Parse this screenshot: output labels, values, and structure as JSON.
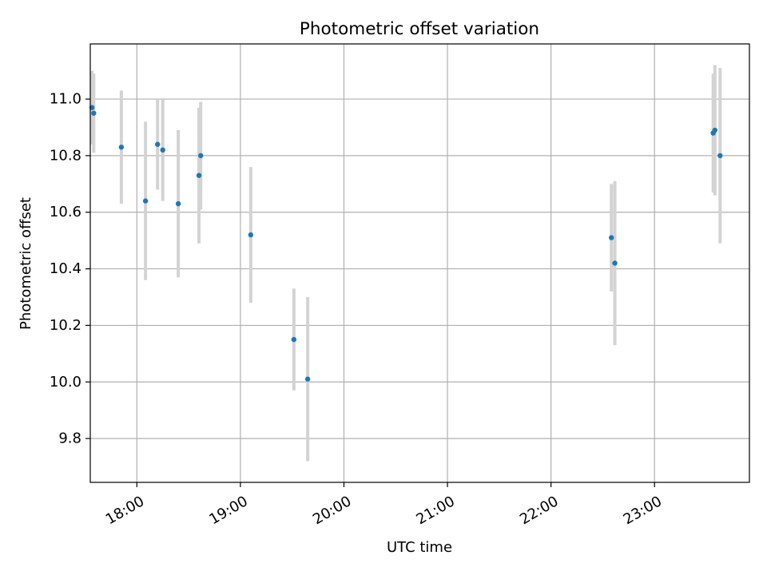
{
  "chart_data": {
    "type": "scatter",
    "title": "Photometric offset variation",
    "xlabel": "UTC time",
    "ylabel": "Photometric offset",
    "x_unit": "UTC time (HH:MM)",
    "xlim": [
      "17:33",
      "23:55"
    ],
    "ylim": [
      9.645,
      11.195
    ],
    "x_ticks": [
      "18:00",
      "19:00",
      "20:00",
      "21:00",
      "22:00",
      "23:00"
    ],
    "y_ticks": [
      "9.8",
      "10.0",
      "10.2",
      "10.4",
      "10.6",
      "10.8",
      "11.0"
    ],
    "grid": true,
    "legend": "none",
    "colors": {
      "points": "#1f77b4",
      "errorbars": "#d3d3d3",
      "grid": "#b0b0b0"
    },
    "series": [
      {
        "points": [
          {
            "x": "17:34",
            "y": 10.97,
            "yerr": 0.13
          },
          {
            "x": "17:35",
            "y": 10.95,
            "yerr": 0.14
          },
          {
            "x": "17:51",
            "y": 10.83,
            "yerr": 0.2
          },
          {
            "x": "18:05",
            "y": 10.64,
            "yerr": 0.28
          },
          {
            "x": "18:12",
            "y": 10.84,
            "yerr": 0.16
          },
          {
            "x": "18:15",
            "y": 10.82,
            "yerr": 0.18
          },
          {
            "x": "18:24",
            "y": 10.63,
            "yerr": 0.26
          },
          {
            "x": "18:36",
            "y": 10.73,
            "yerr": 0.24
          },
          {
            "x": "18:37",
            "y": 10.8,
            "yerr": 0.19
          },
          {
            "x": "19:06",
            "y": 10.52,
            "yerr": 0.24
          },
          {
            "x": "19:31",
            "y": 10.15,
            "yerr": 0.18
          },
          {
            "x": "19:39",
            "y": 10.01,
            "yerr": 0.29
          },
          {
            "x": "22:35",
            "y": 10.51,
            "yerr": 0.19
          },
          {
            "x": "22:37",
            "y": 10.42,
            "yerr": 0.29
          },
          {
            "x": "23:34",
            "y": 10.88,
            "yerr": 0.21
          },
          {
            "x": "23:35",
            "y": 10.89,
            "yerr": 0.23
          },
          {
            "x": "23:38",
            "y": 10.8,
            "yerr": 0.31
          }
        ]
      }
    ]
  }
}
